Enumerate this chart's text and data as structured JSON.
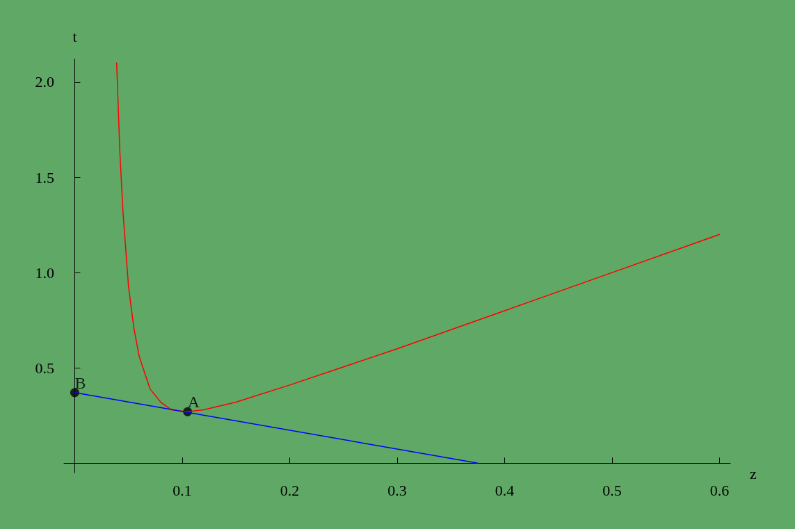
{
  "chart_data": {
    "type": "line",
    "xlabel": "z",
    "ylabel": "t",
    "xlim": [
      -0.01,
      0.61
    ],
    "ylim": [
      -0.05,
      2.12
    ],
    "xticks": [
      0.1,
      0.2,
      0.3,
      0.4,
      0.5,
      0.6
    ],
    "yticks": [
      0.5,
      {
        "value": 1,
        "label": "1.0"
      },
      1.5,
      {
        "value": 2,
        "label": "2.0"
      }
    ],
    "grid": false,
    "marker": "none",
    "line_style": "solid",
    "series": [
      {
        "color": "#ff0000",
        "x": [
          0.039,
          0.042,
          0.045,
          0.05,
          0.055,
          0.06,
          0.07,
          0.08,
          0.09,
          0.105,
          0.12,
          0.15,
          0.2,
          0.3,
          0.4,
          0.5,
          0.6
        ],
        "values": [
          2.1,
          1.63,
          1.31,
          0.93,
          0.71,
          0.56,
          0.39,
          0.32,
          0.28,
          0.27,
          0.28,
          0.32,
          0.41,
          0.6,
          0.8,
          1.0,
          1.2
        ]
      },
      {
        "color": "#0000ff",
        "x": [
          0,
          0.375
        ],
        "values": [
          0.37,
          0
        ]
      },
      {
        "type": "scatter",
        "marker": "circle",
        "color": "#000000",
        "x": [
          0,
          0.105
        ],
        "values": [
          0.37,
          0.27
        ]
      }
    ],
    "annotations": [
      {
        "text": "B",
        "x": 0,
        "y": 0.37
      },
      {
        "text": "A",
        "x": 0.105,
        "y": 0.27
      }
    ]
  }
}
